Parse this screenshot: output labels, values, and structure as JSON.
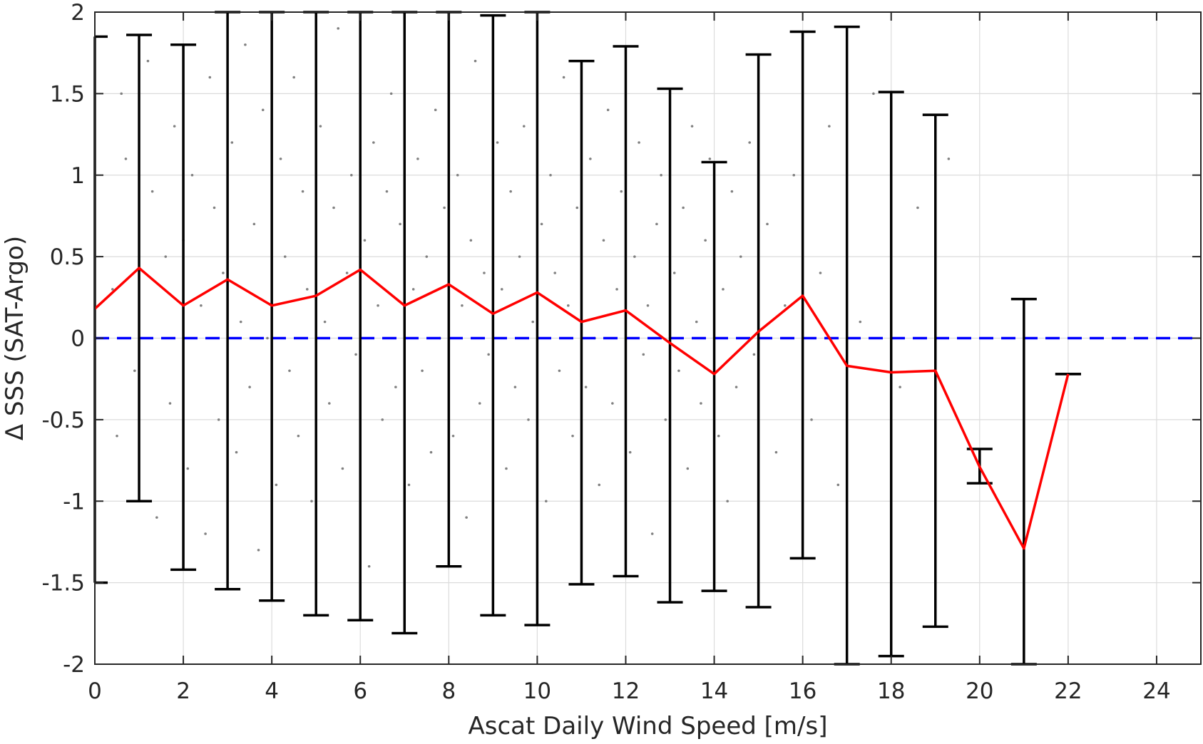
{
  "chart_data": {
    "type": "scatter",
    "title": "",
    "xlabel": "Ascat Daily Wind Speed [m/s]",
    "ylabel": "Δ SSS (SAT-Argo)",
    "xlim": [
      0,
      25
    ],
    "ylim": [
      -2,
      2
    ],
    "x_ticks": [
      0,
      2,
      4,
      6,
      8,
      10,
      12,
      14,
      16,
      18,
      20,
      22,
      24
    ],
    "x_tick_labels": [
      "0",
      "2",
      "4",
      "6",
      "8",
      "10",
      "12",
      "14",
      "16",
      "18",
      "20",
      "22",
      "24"
    ],
    "y_ticks": [
      2,
      1.5,
      1,
      0.5,
      0,
      -0.5,
      -1,
      -1.5,
      -2
    ],
    "y_tick_labels": [
      "2",
      "1.5",
      "1",
      "0.5",
      "0",
      "-0.5",
      "-1",
      "-1.5",
      "-2"
    ],
    "grid": true,
    "legend": "none",
    "colors": {
      "mean_line": "#ff0000",
      "zero_line": "#0000ff",
      "error_bars": "#000000",
      "scatter": "#808080",
      "grid": "#dcdcdc",
      "axes": "#262626"
    },
    "series": [
      {
        "type": "line",
        "x": [
          0,
          1,
          2,
          3,
          4,
          5,
          6,
          7,
          8,
          9,
          10,
          11,
          12,
          13,
          14,
          15,
          16,
          17,
          18,
          19,
          20,
          21,
          22
        ],
        "y": [
          0.18,
          0.43,
          0.2,
          0.36,
          0.2,
          0.26,
          0.42,
          0.2,
          0.33,
          0.15,
          0.28,
          0.1,
          0.17,
          -0.03,
          -0.22,
          0.04,
          0.26,
          -0.17,
          -0.21,
          -0.2,
          -0.79,
          -1.29,
          -0.22
        ]
      },
      {
        "type": "errorbar",
        "x": [
          0,
          1,
          2,
          3,
          4,
          5,
          6,
          7,
          8,
          9,
          10,
          11,
          12,
          13,
          14,
          15,
          16,
          17,
          18,
          19,
          20,
          21,
          22
        ],
        "upper": [
          1.85,
          1.86,
          1.8,
          2.0,
          2.0,
          2.0,
          2.0,
          2.0,
          2.0,
          1.98,
          2.0,
          1.7,
          1.79,
          1.53,
          1.08,
          1.74,
          1.88,
          1.91,
          1.51,
          1.37,
          -0.68,
          0.24,
          -0.22
        ],
        "lower": [
          -1.5,
          -1.0,
          -1.42,
          -1.54,
          -1.61,
          -1.7,
          -1.73,
          -1.81,
          -1.4,
          -1.7,
          -1.76,
          -1.51,
          -1.46,
          -1.62,
          -1.55,
          -1.65,
          -1.35,
          -2.0,
          -1.95,
          -1.77,
          -0.89,
          -2.0,
          -0.22
        ]
      },
      {
        "type": "hline",
        "y": 0
      },
      {
        "type": "scatter",
        "points": [
          [
            0.4,
            0.3
          ],
          [
            0.5,
            -0.6
          ],
          [
            0.6,
            1.5
          ],
          [
            0.7,
            1.1
          ],
          [
            0.9,
            -0.2
          ],
          [
            1.2,
            1.7
          ],
          [
            1.3,
            0.9
          ],
          [
            1.4,
            -1.1
          ],
          [
            1.6,
            0.5
          ],
          [
            1.7,
            -0.4
          ],
          [
            1.8,
            1.3
          ],
          [
            2.0,
            0.6
          ],
          [
            2.1,
            -0.8
          ],
          [
            2.2,
            1.0
          ],
          [
            2.4,
            0.2
          ],
          [
            2.5,
            -1.2
          ],
          [
            2.6,
            1.6
          ],
          [
            2.7,
            0.8
          ],
          [
            2.8,
            -0.5
          ],
          [
            2.9,
            0.4
          ],
          [
            3.1,
            1.2
          ],
          [
            3.2,
            -0.7
          ],
          [
            3.3,
            0.1
          ],
          [
            3.4,
            1.8
          ],
          [
            3.5,
            -0.3
          ],
          [
            3.6,
            0.7
          ],
          [
            3.7,
            -1.3
          ],
          [
            3.8,
            1.4
          ],
          [
            3.9,
            0.0
          ],
          [
            4.1,
            -0.9
          ],
          [
            4.2,
            1.1
          ],
          [
            4.3,
            0.5
          ],
          [
            4.4,
            -0.2
          ],
          [
            4.5,
            1.6
          ],
          [
            4.6,
            -0.6
          ],
          [
            4.7,
            0.9
          ],
          [
            4.8,
            0.3
          ],
          [
            4.9,
            -1.0
          ],
          [
            5.1,
            1.3
          ],
          [
            5.2,
            0.1
          ],
          [
            5.3,
            -0.4
          ],
          [
            5.4,
            0.8
          ],
          [
            5.5,
            1.9
          ],
          [
            5.6,
            -0.8
          ],
          [
            5.7,
            0.4
          ],
          [
            5.8,
            1.0
          ],
          [
            5.9,
            -0.1
          ],
          [
            6.1,
            0.6
          ],
          [
            6.2,
            -1.4
          ],
          [
            6.3,
            1.2
          ],
          [
            6.4,
            0.2
          ],
          [
            6.5,
            -0.5
          ],
          [
            6.6,
            0.9
          ],
          [
            6.7,
            1.5
          ],
          [
            6.8,
            -0.3
          ],
          [
            6.9,
            0.7
          ],
          [
            7.1,
            -0.9
          ],
          [
            7.2,
            0.3
          ],
          [
            7.3,
            1.1
          ],
          [
            7.4,
            -0.2
          ],
          [
            7.5,
            0.5
          ],
          [
            7.6,
            -0.7
          ],
          [
            7.7,
            1.4
          ],
          [
            7.8,
            0.0
          ],
          [
            7.9,
            0.8
          ],
          [
            8.1,
            -0.6
          ],
          [
            8.2,
            1.0
          ],
          [
            8.3,
            0.2
          ],
          [
            8.4,
            -1.1
          ],
          [
            8.5,
            0.6
          ],
          [
            8.6,
            1.7
          ],
          [
            8.7,
            -0.4
          ],
          [
            8.8,
            0.4
          ],
          [
            8.9,
            -0.1
          ],
          [
            9.1,
            1.2
          ],
          [
            9.2,
            0.3
          ],
          [
            9.3,
            -0.8
          ],
          [
            9.4,
            0.9
          ],
          [
            9.5,
            -0.3
          ],
          [
            9.6,
            0.5
          ],
          [
            9.7,
            1.3
          ],
          [
            9.8,
            -0.5
          ],
          [
            9.9,
            0.1
          ],
          [
            10.1,
            0.7
          ],
          [
            10.2,
            -1.0
          ],
          [
            10.3,
            1.0
          ],
          [
            10.4,
            0.4
          ],
          [
            10.5,
            -0.2
          ],
          [
            10.6,
            1.6
          ],
          [
            10.7,
            0.2
          ],
          [
            10.8,
            -0.6
          ],
          [
            10.9,
            0.8
          ],
          [
            11.1,
            -0.3
          ],
          [
            11.2,
            1.1
          ],
          [
            11.3,
            0.0
          ],
          [
            11.4,
            -0.9
          ],
          [
            11.5,
            0.6
          ],
          [
            11.6,
            1.4
          ],
          [
            11.7,
            -0.4
          ],
          [
            11.8,
            0.3
          ],
          [
            11.9,
            0.9
          ],
          [
            12.1,
            -0.7
          ],
          [
            12.2,
            0.5
          ],
          [
            12.3,
            1.2
          ],
          [
            12.4,
            -0.1
          ],
          [
            12.5,
            0.2
          ],
          [
            12.6,
            -1.2
          ],
          [
            12.7,
            0.7
          ],
          [
            12.8,
            1.0
          ],
          [
            12.9,
            -0.5
          ],
          [
            13.1,
            0.4
          ],
          [
            13.2,
            -0.2
          ],
          [
            13.3,
            0.8
          ],
          [
            13.4,
            -0.8
          ],
          [
            13.5,
            1.3
          ],
          [
            13.6,
            0.1
          ],
          [
            13.7,
            -0.4
          ],
          [
            13.8,
            0.6
          ],
          [
            13.9,
            1.1
          ],
          [
            14.1,
            -0.6
          ],
          [
            14.2,
            0.3
          ],
          [
            14.3,
            -1.0
          ],
          [
            14.4,
            0.9
          ],
          [
            14.5,
            -0.3
          ],
          [
            14.6,
            0.5
          ],
          [
            14.8,
            1.2
          ],
          [
            14.9,
            -0.1
          ],
          [
            15.2,
            0.7
          ],
          [
            15.4,
            -0.7
          ],
          [
            15.6,
            0.2
          ],
          [
            15.8,
            1.0
          ],
          [
            16.2,
            -0.5
          ],
          [
            16.4,
            0.4
          ],
          [
            16.6,
            1.3
          ],
          [
            16.8,
            -0.9
          ],
          [
            17.3,
            0.1
          ],
          [
            17.6,
            1.5
          ],
          [
            18.2,
            -0.3
          ],
          [
            18.6,
            0.8
          ],
          [
            19.3,
            1.1
          ]
        ]
      }
    ]
  }
}
